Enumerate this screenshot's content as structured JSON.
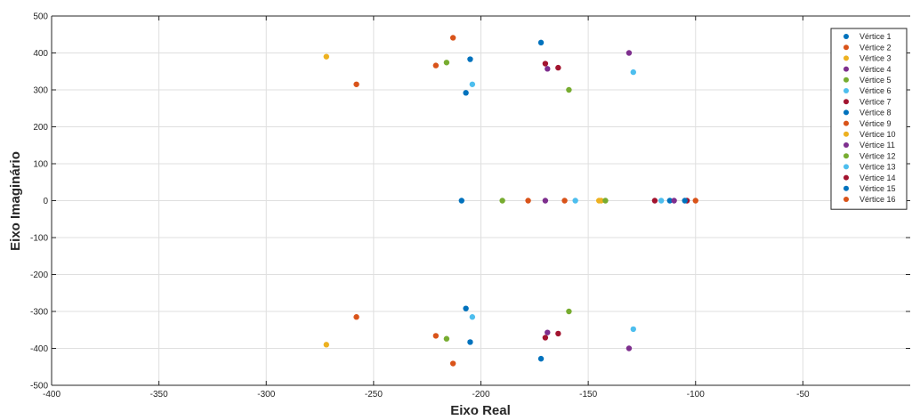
{
  "chart_data": {
    "type": "scatter",
    "xlabel": "Eixo Real",
    "ylabel": "Eixo Imaginário",
    "xlim": [
      -400,
      0
    ],
    "ylim": [
      -500,
      500
    ],
    "x_ticks": [
      -400,
      -350,
      -300,
      -250,
      -200,
      -150,
      -100,
      -50
    ],
    "y_ticks": [
      -500,
      -400,
      -300,
      -200,
      -100,
      0,
      100,
      200,
      300,
      400,
      500
    ],
    "grid": true,
    "legend_position": "top-right",
    "series": [
      {
        "name": "Vértice 1",
        "color": "#0072BD",
        "points": [
          [
            -172,
            428
          ],
          [
            -172,
            -428
          ]
        ]
      },
      {
        "name": "Vértice 2",
        "color": "#D95319",
        "points": [
          [
            -213,
            441
          ],
          [
            -213,
            -441
          ]
        ]
      },
      {
        "name": "Vértice 3",
        "color": "#EDB120",
        "points": [
          [
            -272,
            390
          ],
          [
            -272,
            -390
          ],
          [
            -144,
            0
          ]
        ]
      },
      {
        "name": "Vértice 4",
        "color": "#7E2F8E",
        "points": [
          [
            -131,
            400
          ],
          [
            -131,
            -400
          ],
          [
            -170,
            0
          ]
        ]
      },
      {
        "name": "Vértice 5",
        "color": "#77AC30",
        "points": [
          [
            -159,
            300
          ],
          [
            -159,
            -300
          ],
          [
            -190,
            0
          ]
        ]
      },
      {
        "name": "Vértice 6",
        "color": "#4DBEEE",
        "points": [
          [
            -129,
            348
          ],
          [
            -129,
            -348
          ],
          [
            -156,
            0
          ]
        ]
      },
      {
        "name": "Vértice 7",
        "color": "#A2142F",
        "points": [
          [
            -170,
            371
          ],
          [
            -170,
            -371
          ],
          [
            -119,
            0
          ]
        ]
      },
      {
        "name": "Vértice 8",
        "color": "#0072BD",
        "points": [
          [
            -207,
            292
          ],
          [
            -207,
            -292
          ],
          [
            -112,
            0
          ]
        ]
      },
      {
        "name": "Vértice 9",
        "color": "#D95319",
        "points": [
          [
            -258,
            315
          ],
          [
            -258,
            -315
          ],
          [
            -178,
            0
          ]
        ]
      },
      {
        "name": "Vértice 10",
        "color": "#EDB120",
        "points": [
          [
            -145,
            0
          ]
        ]
      },
      {
        "name": "Vértice 11",
        "color": "#7E2F8E",
        "points": [
          [
            -169,
            357
          ],
          [
            -169,
            -357
          ],
          [
            -110,
            0
          ]
        ]
      },
      {
        "name": "Vértice 12",
        "color": "#77AC30",
        "points": [
          [
            -216,
            374
          ],
          [
            -216,
            -374
          ],
          [
            -142,
            0
          ]
        ]
      },
      {
        "name": "Vértice 13",
        "color": "#4DBEEE",
        "points": [
          [
            -204,
            315
          ],
          [
            -204,
            -315
          ],
          [
            -116,
            0
          ]
        ]
      },
      {
        "name": "Vértice 14",
        "color": "#A2142F",
        "points": [
          [
            -164,
            360
          ],
          [
            -164,
            -360
          ],
          [
            -104,
            0
          ]
        ]
      },
      {
        "name": "Vértice 15",
        "color": "#0072BD",
        "points": [
          [
            -205,
            383
          ],
          [
            -205,
            -383
          ],
          [
            -209,
            0
          ],
          [
            -105,
            0
          ]
        ]
      },
      {
        "name": "Vértice 16",
        "color": "#D95319",
        "points": [
          [
            -221,
            366
          ],
          [
            -221,
            -366
          ],
          [
            -161,
            0
          ],
          [
            -100,
            0
          ]
        ]
      }
    ]
  }
}
